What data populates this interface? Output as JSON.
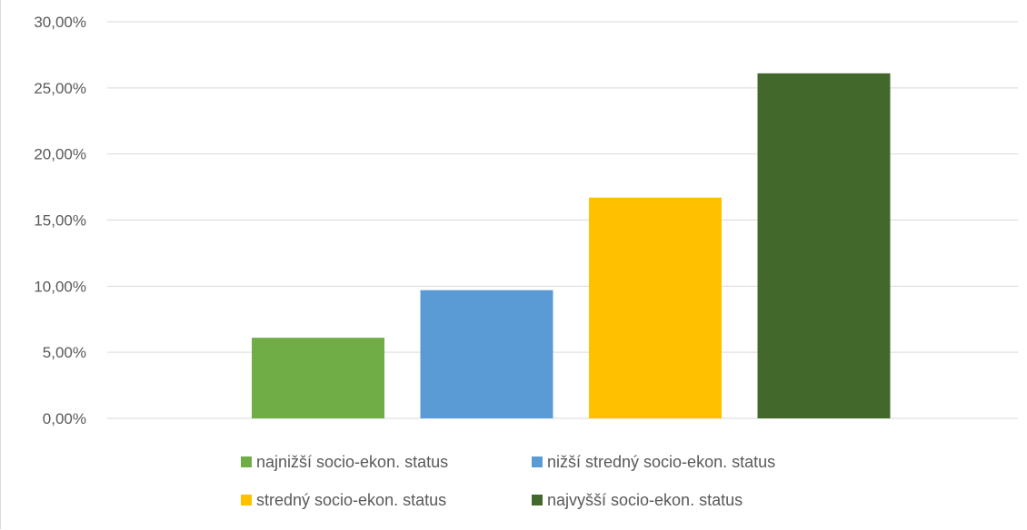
{
  "chart_data": {
    "type": "bar",
    "categories": [
      "najnižší socio-ekon. status",
      "nižší stredný socio-ekon. status",
      "stredný socio-ekon. status",
      "najvyšší socio-ekon. status"
    ],
    "values": [
      6.1,
      9.7,
      16.7,
      26.1
    ],
    "colors": [
      "#70ad47",
      "#5b9bd5",
      "#ffc000",
      "#43682b"
    ],
    "ylim": [
      0,
      30
    ],
    "yticks": [
      "0,00%",
      "5,00%",
      "10,00%",
      "15,00%",
      "20,00%",
      "25,00%",
      "30,00%"
    ],
    "grid": true,
    "legend_position": "bottom",
    "legend": [
      "najnižší socio-ekon. status",
      "nižší stredný socio-ekon. status",
      "stredný socio-ekon. status",
      "najvyšší socio-ekon. status"
    ]
  }
}
